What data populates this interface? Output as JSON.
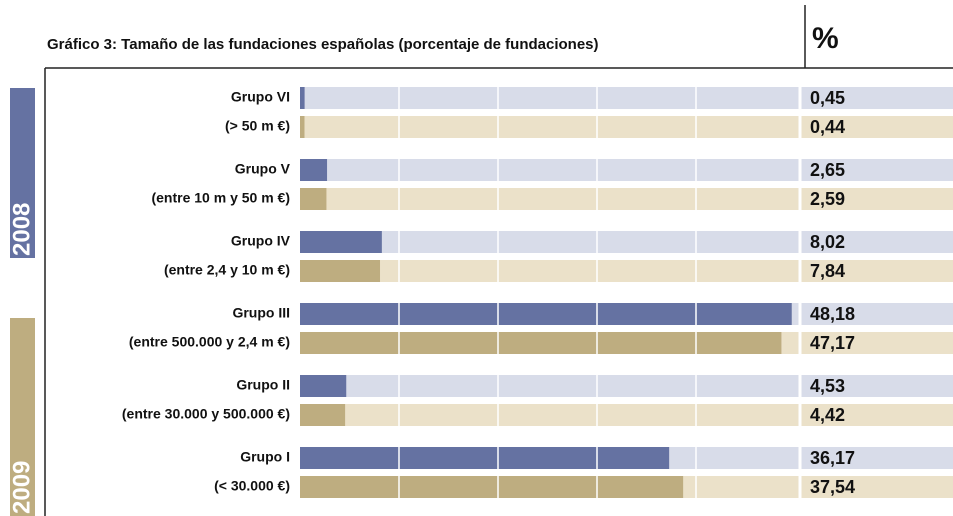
{
  "chart_data": {
    "type": "hbar",
    "title": "Gráfico 3: Tamaño de las fundaciones españolas (porcentaje de fundaciones)",
    "value_header": "%",
    "categories": [
      [
        "Grupo VI",
        "(> 50 m €)"
      ],
      [
        "Grupo V",
        "(entre 10 m  y 50 m €)"
      ],
      [
        "Grupo IV",
        "(entre 2,4 y 10 m €)"
      ],
      [
        "Grupo III",
        "(entre 500.000 y 2,4 m €)"
      ],
      [
        "Grupo II",
        "(entre 30.000 y 500.000 €)"
      ],
      [
        "Grupo I",
        "(< 30.000 €)"
      ]
    ],
    "series": [
      {
        "name": "2008",
        "color": "#6572a2",
        "track_color": "#d8dce9",
        "values": [
          0.45,
          2.65,
          8.02,
          48.18,
          4.53,
          36.17
        ],
        "value_labels": [
          "0,45",
          "2,65",
          "8,02",
          "48,18",
          "4,53",
          "36,17"
        ]
      },
      {
        "name": "2009",
        "color": "#bead80",
        "track_color": "#ebe1c9",
        "values": [
          0.44,
          2.59,
          7.84,
          47.17,
          4.42,
          37.54
        ],
        "value_labels": [
          "0,44",
          "2,59",
          "7,84",
          "47,17",
          "4,42",
          "37,54"
        ]
      }
    ],
    "xlim": [
      0,
      48.5
    ],
    "grid": true
  }
}
